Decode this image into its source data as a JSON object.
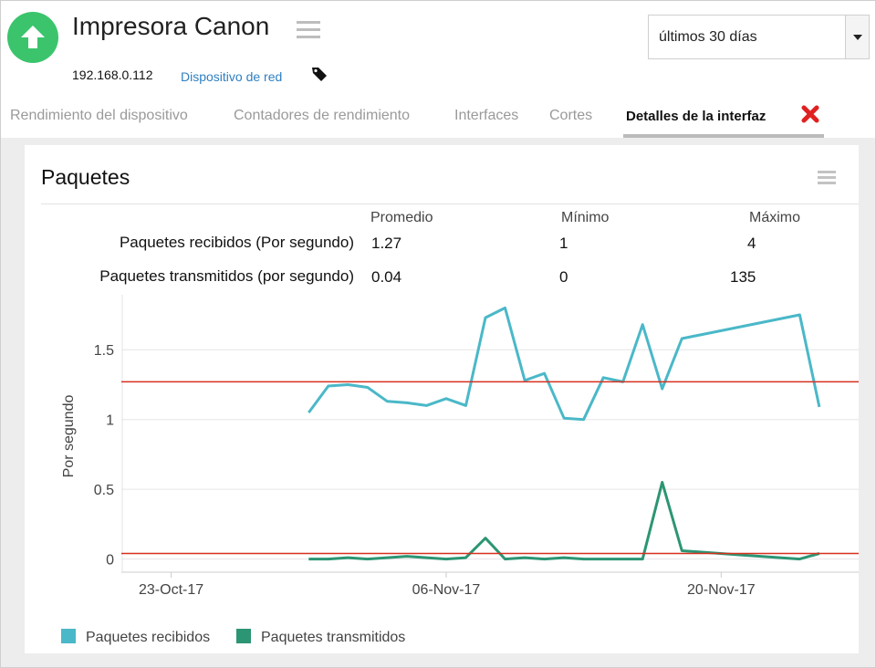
{
  "device": {
    "name": "Impresora Canon",
    "ip": "192.168.0.112",
    "type_link": "Dispositivo de red",
    "status_color": "#3bc46c"
  },
  "time_range": {
    "selected": "últimos 30 días"
  },
  "tabs": [
    {
      "label": "Rendimiento del dispositivo",
      "active": false
    },
    {
      "label": "Contadores de rendimiento",
      "active": false
    },
    {
      "label": "Interfaces",
      "active": false
    },
    {
      "label": "Cortes",
      "active": false
    },
    {
      "label": "Detalles de la interfaz",
      "active": true
    }
  ],
  "panel": {
    "title": "Paquetes",
    "stats": {
      "headers": [
        "Promedio",
        "Mínimo",
        "Máximo"
      ],
      "rows": [
        {
          "label": "Paquetes recibidos (Por segundo)",
          "avg": "1.27",
          "min": "1",
          "max": "4"
        },
        {
          "label": "Paquetes transmitidos (por segundo)",
          "avg": "0.04",
          "min": "0",
          "max": "135"
        }
      ]
    }
  },
  "colors": {
    "received": "#4ab8c8",
    "transmitted": "#2c9574",
    "threshold": "#d7301f"
  },
  "chart_data": {
    "type": "line",
    "ylabel": "Por segundo",
    "ylim": [
      -0.12,
      1.92
    ],
    "yticks": [
      "0",
      "0.5",
      "1",
      "1.5"
    ],
    "x_ticks": [
      "23-Oct-17",
      "06-Nov-17",
      "20-Nov-17"
    ],
    "x_range_days": [
      "2017-10-20",
      "2017-11-27"
    ],
    "series": [
      {
        "name": "Paquetes recibidos",
        "color": "#4ab8c8",
        "points": [
          [
            "2017-10-30",
            1.05
          ],
          [
            "2017-10-31",
            1.24
          ],
          [
            "2017-11-01",
            1.25
          ],
          [
            "2017-11-02",
            1.23
          ],
          [
            "2017-11-03",
            1.13
          ],
          [
            "2017-11-04",
            1.12
          ],
          [
            "2017-11-05",
            1.1
          ],
          [
            "2017-11-06",
            1.15
          ],
          [
            "2017-11-07",
            1.1
          ],
          [
            "2017-11-08",
            1.73
          ],
          [
            "2017-11-09",
            1.8
          ],
          [
            "2017-11-10",
            1.28
          ],
          [
            "2017-11-11",
            1.33
          ],
          [
            "2017-11-12",
            1.01
          ],
          [
            "2017-11-13",
            1.0
          ],
          [
            "2017-11-14",
            1.3
          ],
          [
            "2017-11-15",
            1.27
          ],
          [
            "2017-11-16",
            1.68
          ],
          [
            "2017-11-17",
            1.22
          ],
          [
            "2017-11-18",
            1.58
          ],
          [
            "2017-11-24",
            1.75
          ],
          [
            "2017-11-25",
            1.09
          ]
        ]
      },
      {
        "name": "Paquetes transmitidos",
        "color": "#2c9574",
        "points": [
          [
            "2017-10-30",
            0.0
          ],
          [
            "2017-10-31",
            0.0
          ],
          [
            "2017-11-01",
            0.01
          ],
          [
            "2017-11-02",
            0.0
          ],
          [
            "2017-11-03",
            0.01
          ],
          [
            "2017-11-04",
            0.02
          ],
          [
            "2017-11-05",
            0.01
          ],
          [
            "2017-11-06",
            0.0
          ],
          [
            "2017-11-07",
            0.01
          ],
          [
            "2017-11-08",
            0.15
          ],
          [
            "2017-11-09",
            0.0
          ],
          [
            "2017-11-10",
            0.01
          ],
          [
            "2017-11-11",
            0.0
          ],
          [
            "2017-11-12",
            0.01
          ],
          [
            "2017-11-13",
            0.0
          ],
          [
            "2017-11-14",
            0.0
          ],
          [
            "2017-11-15",
            0.0
          ],
          [
            "2017-11-16",
            0.0
          ],
          [
            "2017-11-17",
            0.55
          ],
          [
            "2017-11-18",
            0.06
          ],
          [
            "2017-11-21",
            0.03
          ],
          [
            "2017-11-24",
            0.0
          ],
          [
            "2017-11-25",
            0.04
          ]
        ]
      }
    ],
    "thresholds": [
      1.27,
      0.04
    ],
    "grid": true,
    "legend_position": "bottom-left"
  }
}
